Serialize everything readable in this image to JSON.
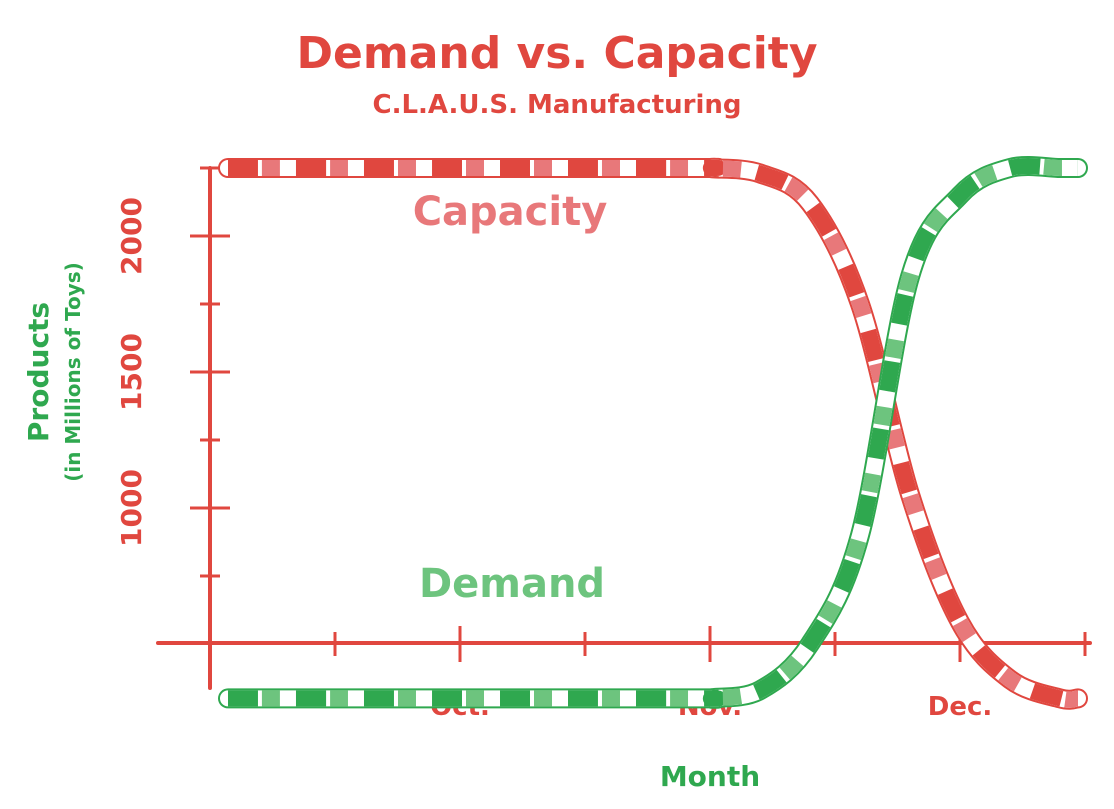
{
  "title": "Demand vs. Capacity",
  "subtitle": "C.L.A.U.S. Manufacturing",
  "colors": {
    "red": "#e0473f",
    "light_red": "#e8787a",
    "green": "#2fa84f",
    "light_green": "#6dc47e",
    "white": "#ffffff"
  },
  "chart_data": {
    "type": "line",
    "title": "Demand vs. Capacity",
    "subtitle": "C.L.A.U.S. Manufacturing",
    "xlabel": "Month",
    "ylabel": "Products",
    "ylabel_sub": "(in Millions of Toys)",
    "x_ticks": [
      "Oct.",
      "Nov.",
      "Dec."
    ],
    "x_range": [
      "Sep.",
      "mid Dec."
    ],
    "ylim": [
      0,
      2500
    ],
    "y_ticks": [
      1000,
      1500,
      2000
    ],
    "grid": false,
    "series": [
      {
        "name": "Capacity",
        "color": "#e0473f",
        "style": "candy-cane red/white stripes",
        "x_months": [
          0.0,
          0.5,
          1.0,
          1.5,
          2.0,
          2.01,
          2.2,
          2.4,
          2.6,
          2.8,
          3.0,
          3.2,
          3.4,
          3.5
        ],
        "values": [
          2250,
          2250,
          2250,
          2250,
          2250,
          2249,
          2230,
          2120,
          1750,
          1050,
          580,
          370,
          300,
          300
        ]
      },
      {
        "name": "Demand",
        "color": "#2fa84f",
        "style": "candy-cane green/white stripes",
        "x_months": [
          0.0,
          0.5,
          1.0,
          1.5,
          2.0,
          2.01,
          2.2,
          2.4,
          2.6,
          2.8,
          3.0,
          3.2,
          3.4,
          3.5
        ],
        "values": [
          300,
          300,
          300,
          300,
          300,
          301,
          330,
          500,
          900,
          1850,
          2150,
          2250,
          2250,
          2250
        ]
      }
    ]
  }
}
